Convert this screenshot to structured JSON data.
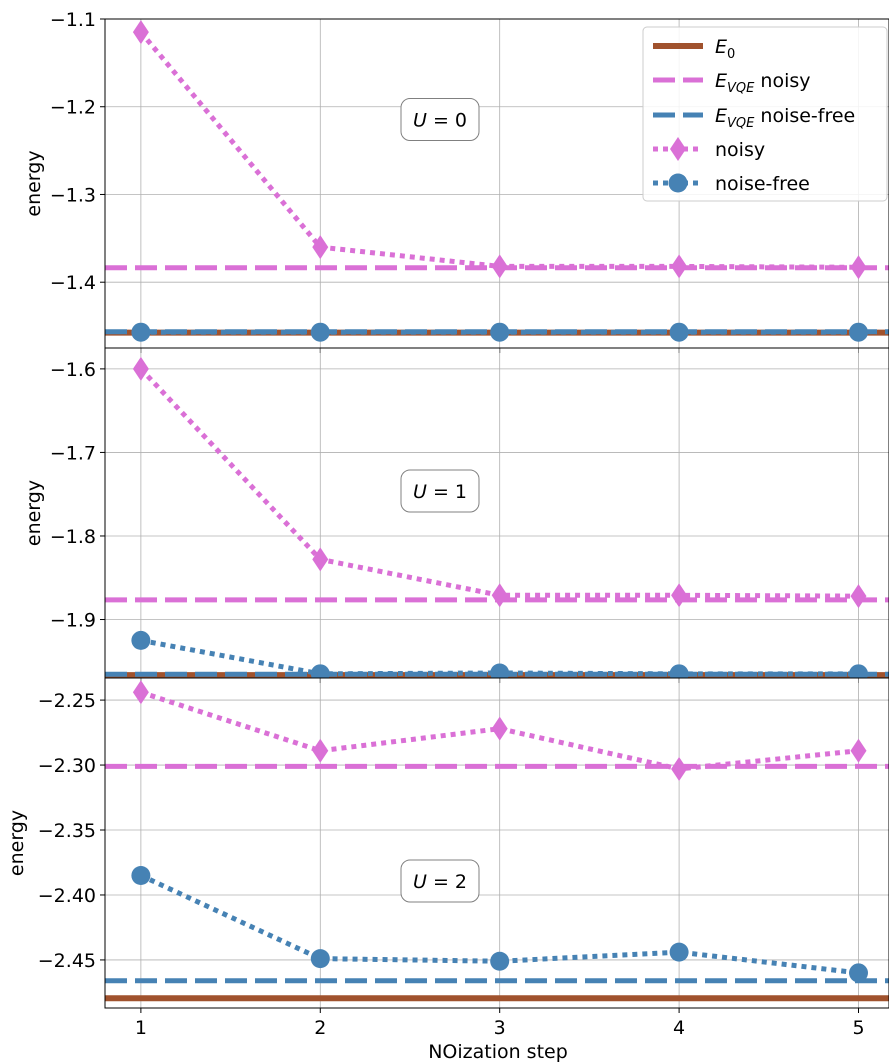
{
  "chart_data": {
    "type": "line",
    "xlabel": "NOization step",
    "x": [
      1,
      2,
      3,
      4,
      5
    ],
    "x_ticks": [
      "1",
      "2",
      "3",
      "4",
      "5"
    ],
    "xlim": [
      0.8,
      5.17
    ],
    "grid": true,
    "legend": {
      "placement": "top-right",
      "entries": [
        {
          "key": "E0",
          "base": "E",
          "sub": "0",
          "suffix": ""
        },
        {
          "key": "evqe_noisy",
          "base": "E",
          "sub": "VQE",
          "suffix": " noisy"
        },
        {
          "key": "evqe_free",
          "base": "E",
          "sub": "VQE",
          "suffix": " noise-free"
        },
        {
          "key": "noisy",
          "base": "",
          "sub": "",
          "suffix": "noisy"
        },
        {
          "key": "free",
          "base": "",
          "sub": "",
          "suffix": "noise-free"
        }
      ]
    },
    "colors": {
      "E0": "#a0522d",
      "noisy": "#da70d6",
      "free": "#4682b4"
    },
    "panels": [
      {
        "ylabel": "energy",
        "annotation": {
          "var": "U",
          "value": "0"
        },
        "ylim": [
          -1.475,
          -1.1
        ],
        "y_ticks": [
          -1.1,
          -1.2,
          -1.3,
          -1.4
        ],
        "y_tick_labels": [
          "−1.1",
          "−1.2",
          "−1.3",
          "−1.4"
        ],
        "E0": -1.4575,
        "E_VQE_noisy": -1.3835,
        "E_VQE_noise_free": -1.4565,
        "noisy": [
          -1.115,
          -1.36,
          -1.382,
          -1.382,
          -1.383
        ],
        "noise_free": [
          -1.457,
          -1.457,
          -1.457,
          -1.457,
          -1.457
        ]
      },
      {
        "ylabel": "energy",
        "annotation": {
          "var": "U",
          "value": "1"
        },
        "ylim": [
          -1.97,
          -1.575
        ],
        "y_ticks": [
          -1.6,
          -1.7,
          -1.8,
          -1.9
        ],
        "y_tick_labels": [
          "−1.6",
          "−1.7",
          "−1.8",
          "−1.9"
        ],
        "E0": -1.9665,
        "E_VQE_noisy": -1.8765,
        "E_VQE_noise_free": -1.9655,
        "noisy": [
          -1.6,
          -1.828,
          -1.871,
          -1.871,
          -1.872
        ],
        "noise_free": [
          -1.925,
          -1.965,
          -1.964,
          -1.965,
          -1.965
        ]
      },
      {
        "ylabel": "energy",
        "annotation": {
          "var": "U",
          "value": "2"
        },
        "ylim": [
          -2.487,
          -2.233
        ],
        "y_ticks": [
          -2.25,
          -2.3,
          -2.35,
          -2.4,
          -2.45
        ],
        "y_tick_labels": [
          "−2.25",
          "−2.30",
          "−2.35",
          "−2.40",
          "−2.45"
        ],
        "E0": -2.4795,
        "E_VQE_noisy": -2.301,
        "E_VQE_noise_free": -2.466,
        "noisy": [
          -2.244,
          -2.289,
          -2.272,
          -2.303,
          -2.289
        ],
        "noise_free": [
          -2.385,
          -2.449,
          -2.451,
          -2.444,
          -2.46
        ]
      }
    ]
  }
}
